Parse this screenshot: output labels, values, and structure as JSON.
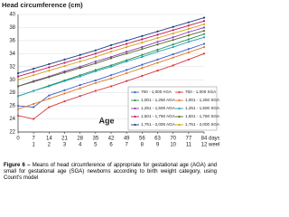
{
  "chart_data": {
    "type": "line",
    "title": "Head circumference (cm)",
    "x_label": "Age",
    "x": [
      0,
      7,
      14,
      21,
      28,
      35,
      42,
      49,
      56,
      63,
      70,
      77,
      84
    ],
    "xlim": [
      0,
      84
    ],
    "xticks": [
      0,
      7,
      14,
      21,
      28,
      35,
      42,
      49,
      56,
      63,
      70,
      77,
      84
    ],
    "x_unit_label": "days",
    "week_ticks": [
      {
        "value": 7,
        "label": "1"
      },
      {
        "value": 14,
        "label": "2"
      },
      {
        "value": 21,
        "label": "3"
      },
      {
        "value": 28,
        "label": "4"
      },
      {
        "value": 35,
        "label": "5"
      },
      {
        "value": 42,
        "label": "6"
      },
      {
        "value": 49,
        "label": "7"
      },
      {
        "value": 56,
        "label": "8"
      },
      {
        "value": 63,
        "label": "9"
      },
      {
        "value": 70,
        "label": "10"
      },
      {
        "value": 77,
        "label": "11"
      },
      {
        "value": 84,
        "label": "12"
      }
    ],
    "week_unit_label": "weeks",
    "ylim": [
      22,
      40
    ],
    "yticks": [
      22,
      24,
      26,
      28,
      30,
      32,
      34,
      36,
      38,
      40
    ],
    "grid": true,
    "legend": "lower right",
    "caption_label": "Figure 6 –",
    "caption": "Means of head circumference of appropriate for gestational age (AGA) and small for gestational age (SGA) newborns according to birth weight category, using Count's model",
    "series": [
      {
        "name": "750 - 1,000 AGA",
        "color": "#3a5fcd",
        "values": [
          26.0,
          25.8,
          27.6,
          28.4,
          29.2,
          29.9,
          30.7,
          31.5,
          32.3,
          33.1,
          33.9,
          34.7,
          35.5
        ]
      },
      {
        "name": "750 - 1,000 SGA",
        "color": "#d9363e",
        "values": [
          24.5,
          24.0,
          25.8,
          26.7,
          27.5,
          28.3,
          29.0,
          29.8,
          30.6,
          31.4,
          32.2,
          33.1,
          34.0
        ]
      },
      {
        "name": "1,001 - 1,250 AGA",
        "color": "#2e8b57",
        "values": [
          27.5,
          28.3,
          29.1,
          29.9,
          30.7,
          31.5,
          32.2,
          33.0,
          33.8,
          34.6,
          35.4,
          36.2,
          37.0
        ]
      },
      {
        "name": "1,001 - 1,250 SGA",
        "color": "#e07b24",
        "values": [
          25.5,
          26.3,
          27.1,
          27.9,
          28.7,
          29.5,
          30.2,
          31.0,
          31.8,
          32.6,
          33.4,
          34.2,
          35.0
        ]
      },
      {
        "name": "1,251 - 1,500 AGA",
        "color": "#8a3fb5",
        "values": [
          29.0,
          29.8,
          30.5,
          31.3,
          32.0,
          32.8,
          33.5,
          34.3,
          35.0,
          35.8,
          36.5,
          37.3,
          38.0
        ]
      },
      {
        "name": "1,251 - 1,500 SGA",
        "color": "#1fa3b8",
        "values": [
          27.5,
          28.3,
          29.0,
          29.8,
          30.5,
          31.3,
          32.0,
          32.8,
          33.5,
          34.3,
          35.0,
          35.8,
          36.5
        ]
      },
      {
        "name": "1,501 - 1,750 AGA",
        "color": "#c2185b",
        "values": [
          30.5,
          31.2,
          31.9,
          32.6,
          33.3,
          34.0,
          34.8,
          35.5,
          36.2,
          36.9,
          37.6,
          38.3,
          39.0
        ]
      },
      {
        "name": "1,501 - 1,750 SGA",
        "color": "#556b2f",
        "values": [
          29.0,
          29.7,
          30.4,
          31.1,
          31.8,
          32.5,
          33.3,
          34.0,
          34.7,
          35.4,
          36.1,
          36.8,
          37.5
        ]
      },
      {
        "name": "1,751 - 2,000 AGA",
        "color": "#1e3f8a",
        "values": [
          31.0,
          31.7,
          32.4,
          33.1,
          33.8,
          34.5,
          35.3,
          36.0,
          36.7,
          37.4,
          38.1,
          38.8,
          39.5
        ]
      },
      {
        "name": "1,751 - 2,000 SGA",
        "color": "#d4a017",
        "values": [
          30.0,
          30.7,
          31.4,
          32.1,
          32.8,
          33.5,
          34.3,
          35.0,
          35.7,
          36.4,
          37.1,
          37.8,
          38.5
        ]
      }
    ]
  }
}
